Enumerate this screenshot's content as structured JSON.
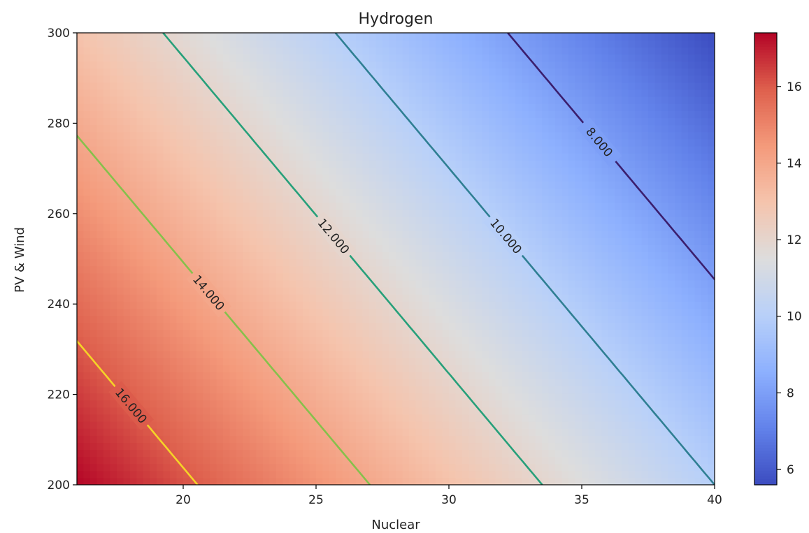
{
  "chart_data": {
    "type": "heatmap",
    "title": "Hydrogen",
    "xlabel": "Nuclear",
    "ylabel": "PV & Wind",
    "xlim": [
      16,
      40
    ],
    "ylim": [
      200,
      300
    ],
    "xticks": [
      20,
      25,
      30,
      35,
      40
    ],
    "yticks": [
      200,
      220,
      240,
      260,
      280,
      300
    ],
    "colormap": "coolwarm",
    "color_range": [
      5.6,
      17.4
    ],
    "colorbar_ticks": [
      6,
      8,
      10,
      12,
      14,
      16
    ],
    "corner_values": {
      "x16_y200": 17.4,
      "x40_y200": 10.0,
      "x16_y300": 13.0,
      "x40_y300": 5.6
    },
    "contours": [
      {
        "level": 8,
        "label": "8.000",
        "color": "#3b1f6e"
      },
      {
        "level": 10,
        "label": "10.000",
        "color": "#2f7f93"
      },
      {
        "level": 12,
        "label": "12.000",
        "color": "#27a07a"
      },
      {
        "level": 14,
        "label": "14.000",
        "color": "#86c04b"
      },
      {
        "level": 16,
        "label": "16.000",
        "color": "#f5d327"
      }
    ],
    "grid": false
  }
}
